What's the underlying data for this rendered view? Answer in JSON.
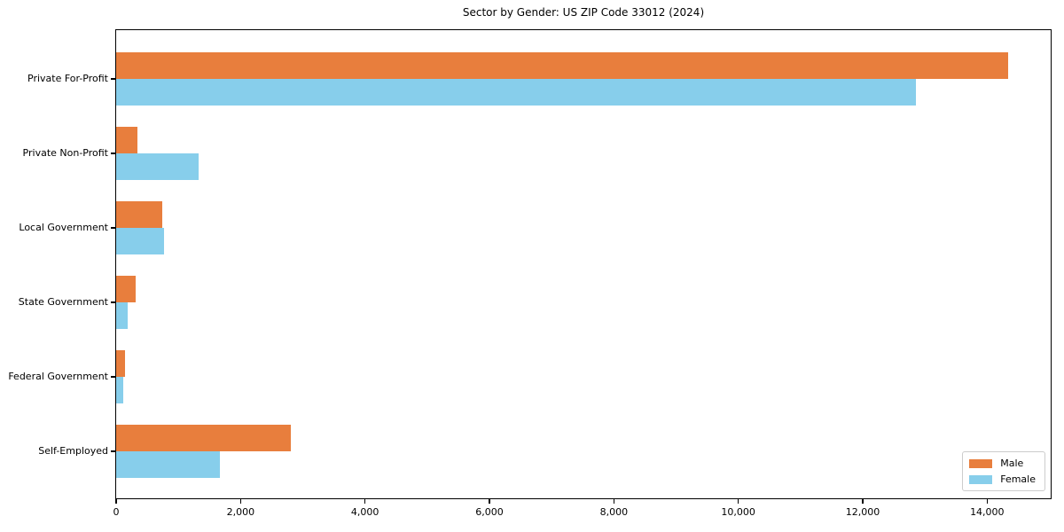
{
  "title": "Sector by Gender: US ZIP Code 33012 (2024)",
  "chart_data": {
    "type": "bar",
    "orientation": "horizontal",
    "title": "Sector by Gender: US ZIP Code 33012 (2024)",
    "categories": [
      "Private For-Profit",
      "Private Non-Profit",
      "Local Government",
      "State Government",
      "Federal Government",
      "Self-Employed"
    ],
    "series": [
      {
        "name": "Male",
        "color": "#e87e3d",
        "values": [
          14340,
          340,
          740,
          320,
          140,
          2810
        ]
      },
      {
        "name": "Female",
        "color": "#87ceeb",
        "values": [
          12850,
          1320,
          770,
          180,
          110,
          1670
        ]
      }
    ],
    "xlabel": "",
    "ylabel": "",
    "xlim": [
      0,
      15050
    ],
    "xticks": [
      0,
      2000,
      4000,
      6000,
      8000,
      10000,
      12000,
      14000
    ],
    "xtick_labels": [
      "0",
      "2,000",
      "4,000",
      "6,000",
      "8,000",
      "10,000",
      "12,000",
      "14,000"
    ],
    "grid": false,
    "legend_position": "lower right"
  },
  "legend": {
    "items": [
      {
        "label": "Male",
        "color": "#e87e3d"
      },
      {
        "label": "Female",
        "color": "#87ceeb"
      }
    ]
  }
}
